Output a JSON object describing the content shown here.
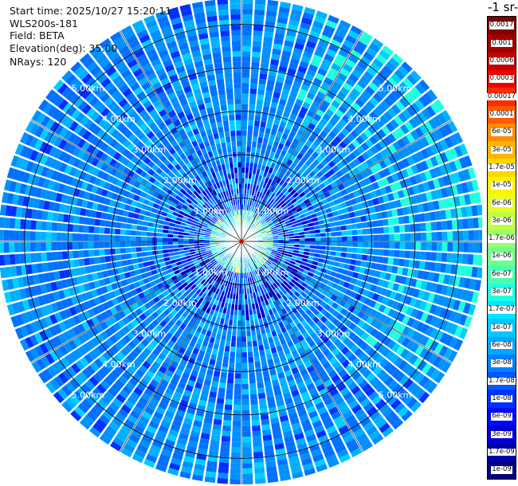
{
  "info": {
    "start_time": "Start time: 2025/10/27 15:20:11",
    "instrument": "WLS200s-181",
    "field": "Field: BETA",
    "elevation": "Elevation(deg): 35.00",
    "nrays": "NRays: 120"
  },
  "colorbar": {
    "title_visible": "-1 sr-",
    "ticks": [
      "0.0017",
      "0.001",
      "0.0006",
      "0.0003",
      "0.00017",
      "0.0001",
      "6e-05",
      "3e-05",
      "1.7e-05",
      "1e-05",
      "6e-06",
      "3e-06",
      "1.7e-06",
      "1e-06",
      "6e-07",
      "3e-07",
      "1.7e-07",
      "1e-07",
      "6e-08",
      "3e-08",
      "1.7e-08",
      "1e-08",
      "6e-09",
      "3e-09",
      "1.7e-09",
      "1e-09"
    ],
    "colors": [
      "#800000",
      "#a00000",
      "#c80000",
      "#f00000",
      "#ff2a00",
      "#ff5a00",
      "#ff8c00",
      "#ffb400",
      "#ffd700",
      "#fff000",
      "#e6ff1e",
      "#bdff45",
      "#96ff6a",
      "#6cff8c",
      "#48ffb2",
      "#1fffde",
      "#00e6ff",
      "#00c8ff",
      "#00a8ff",
      "#0080ff",
      "#0058ff",
      "#0030ff",
      "#0008ff",
      "#0000d6",
      "#0000a8",
      "#000080"
    ]
  },
  "range_labels": [
    "1.00km",
    "2.00km",
    "3.00km",
    "4.00km",
    "5.00km"
  ],
  "chart_data": {
    "type": "heatmap",
    "subtype": "polar-ppi",
    "field": "BETA",
    "n_rays": 120,
    "elevation_deg": 35.0,
    "range_rings_km": [
      1,
      2,
      3,
      4,
      5
    ],
    "max_range_km": 5.6,
    "color_scale": "log",
    "value_range": [
      1e-09,
      0.0017
    ],
    "dominant_value": 1.7e-08,
    "dominant_description": "blue"
  }
}
